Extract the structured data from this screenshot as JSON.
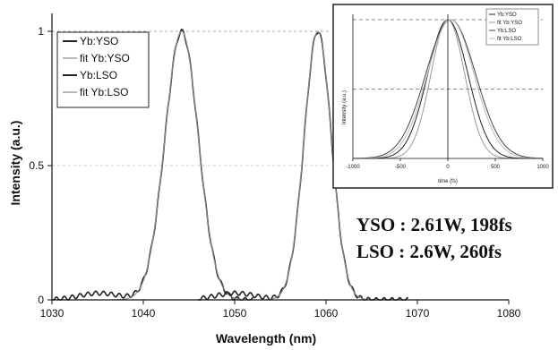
{
  "chart_data": [
    {
      "type": "line",
      "xlabel": "Wavelength (nm)",
      "ylabel": "Intensity (a.u.)",
      "xlim": [
        1030,
        1080
      ],
      "ylim": [
        0,
        1
      ],
      "x_ticks": [
        "1030",
        "1040",
        "1050",
        "1060",
        "1070",
        "1080"
      ],
      "y_ticks": [
        "0",
        "0.5",
        "1"
      ],
      "legend_position": "top-left",
      "series": [
        {
          "name": "Yb:YSO",
          "color": "#222222",
          "peak": 1044.2,
          "fwhm": 4.3,
          "x_range": [
            1030,
            1052
          ]
        },
        {
          "name": "fit Yb:YSO",
          "color": "#8a8a8a",
          "peak": 1044.2,
          "fwhm": 4.3,
          "x_range": [
            1030,
            1052
          ]
        },
        {
          "name": "Yb:LSO",
          "color": "#222222",
          "peak": 1059.1,
          "fwhm": 3.5,
          "x_range": [
            1046,
            1069
          ]
        },
        {
          "name": "fit Yb:LSO",
          "color": "#8a8a8a",
          "peak": 1059.1,
          "fwhm": 3.5,
          "x_range": [
            1046,
            1069
          ]
        }
      ],
      "annotations": [
        "YSO : 2.61W, 198fs",
        "LSO : 2.6W, 260fs"
      ],
      "reference_lines": [
        1
      ]
    },
    {
      "type": "line",
      "xlabel": "time (fs)",
      "ylabel": "Intensity (a.u.)",
      "xlim": [
        -1000,
        1000
      ],
      "ylim": [
        0,
        1
      ],
      "x_ticks": [
        "-1000",
        "-500",
        "0",
        "500",
        "1000"
      ],
      "legend_position": "top-right",
      "reference_lines": [
        1,
        0.5
      ],
      "series": [
        {
          "name": "Yb:YSO",
          "color": "#222222",
          "center": 0,
          "fwhm": 500
        },
        {
          "name": "fit Yb:YSO",
          "color": "#999999",
          "center": 0,
          "fwhm": 420
        },
        {
          "name": "Yb:LSO",
          "color": "#444444",
          "center": 30,
          "fwhm": 620
        },
        {
          "name": "fit Yb:LSO",
          "color": "#bbbbbb",
          "center": 30,
          "fwhm": 580
        }
      ]
    }
  ]
}
